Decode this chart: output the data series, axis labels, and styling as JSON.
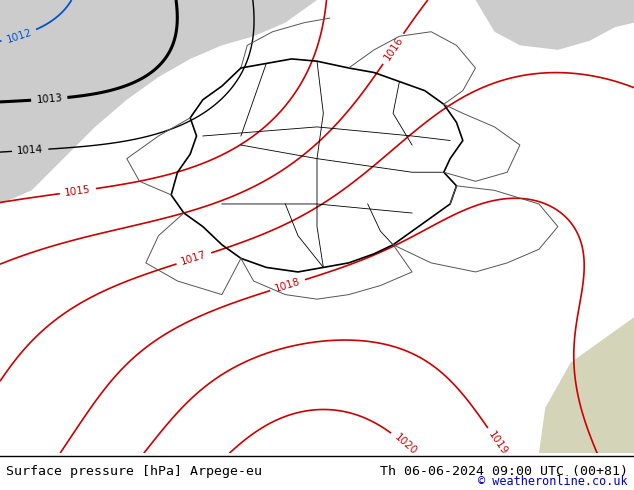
{
  "title_left": "Surface pressure [hPa] Arpege-eu",
  "title_right": "Th 06-06-2024 09:00 UTC (00+81)",
  "copyright": "© weatheronline.co.uk",
  "bg_color_land": "#b8e897",
  "bg_color_sea": "#cccccc",
  "footer_bg": "#ffffff",
  "footer_text_color": "#000000",
  "copyright_color": "#0000cc",
  "title_font_size": 9.5,
  "copyright_font_size": 8.5,
  "figsize": [
    6.34,
    4.9
  ],
  "dpi": 100
}
